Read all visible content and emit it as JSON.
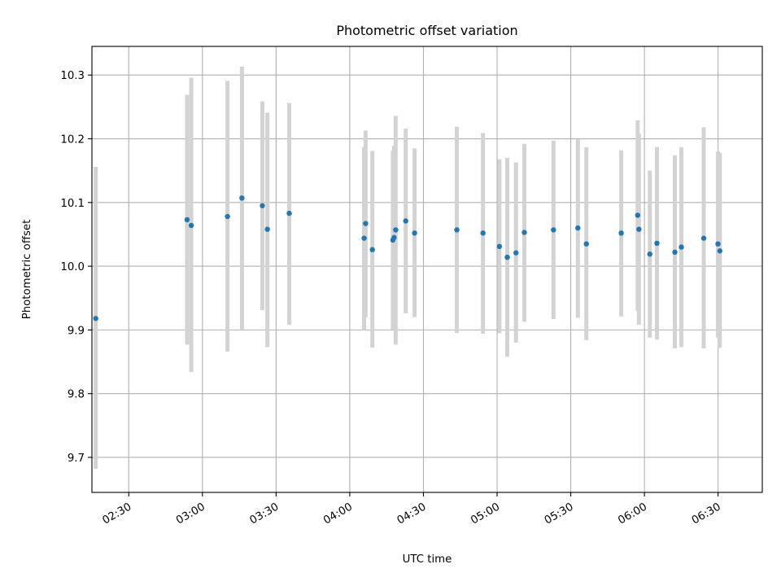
{
  "chart_data": {
    "type": "scatter",
    "title": "Photometric offset variation",
    "xlabel": "UTC time",
    "ylabel": "Photometric offset",
    "x_axis_kind": "time",
    "xlim": [
      "02:15",
      "06:48"
    ],
    "ylim": [
      9.645,
      10.345
    ],
    "x_ticks": [
      "02:30",
      "03:00",
      "03:30",
      "04:00",
      "04:30",
      "05:00",
      "05:30",
      "06:00",
      "06:30"
    ],
    "y_ticks": [
      "9.7",
      "9.8",
      "9.9",
      "10.0",
      "10.1",
      "10.2",
      "10.3"
    ],
    "grid": true,
    "legend": "none",
    "colors": {
      "marker": "#1f77b4",
      "errorbar": "#d3d3d3",
      "grid": "#b0b0b0"
    },
    "series": [
      {
        "points": [
          {
            "x": "02:16:33",
            "y": 9.918,
            "ylow": 9.682,
            "yhigh": 10.156
          },
          {
            "x": "02:53:45",
            "y": 10.073,
            "ylow": 9.877,
            "yhigh": 10.269
          },
          {
            "x": "02:55:27",
            "y": 10.064,
            "ylow": 9.834,
            "yhigh": 10.296
          },
          {
            "x": "03:10:12",
            "y": 10.078,
            "ylow": 9.866,
            "yhigh": 10.291
          },
          {
            "x": "03:16:06",
            "y": 10.107,
            "ylow": 9.901,
            "yhigh": 10.313
          },
          {
            "x": "03:24:24",
            "y": 10.095,
            "ylow": 9.931,
            "yhigh": 10.259
          },
          {
            "x": "03:26:27",
            "y": 10.058,
            "ylow": 9.873,
            "yhigh": 10.241
          },
          {
            "x": "03:35:21",
            "y": 10.083,
            "ylow": 9.908,
            "yhigh": 10.256
          },
          {
            "x": "04:05:51",
            "y": 10.044,
            "ylow": 9.9,
            "yhigh": 10.187
          },
          {
            "x": "04:06:27",
            "y": 10.067,
            "ylow": 9.92,
            "yhigh": 10.213
          },
          {
            "x": "04:09:12",
            "y": 10.026,
            "ylow": 9.872,
            "yhigh": 10.181
          },
          {
            "x": "04:17:33",
            "y": 10.041,
            "ylow": 9.901,
            "yhigh": 10.181
          },
          {
            "x": "04:18:03",
            "y": 10.045,
            "ylow": 9.901,
            "yhigh": 10.189
          },
          {
            "x": "04:18:42",
            "y": 10.057,
            "ylow": 9.877,
            "yhigh": 10.236
          },
          {
            "x": "04:22:48",
            "y": 10.071,
            "ylow": 9.926,
            "yhigh": 10.216
          },
          {
            "x": "04:26:24",
            "y": 10.052,
            "ylow": 9.92,
            "yhigh": 10.185
          },
          {
            "x": "04:43:36",
            "y": 10.057,
            "ylow": 9.895,
            "yhigh": 10.219
          },
          {
            "x": "04:54:15",
            "y": 10.052,
            "ylow": 9.894,
            "yhigh": 10.209
          },
          {
            "x": "05:00:57",
            "y": 10.031,
            "ylow": 9.895,
            "yhigh": 10.168
          },
          {
            "x": "05:04:09",
            "y": 10.014,
            "ylow": 9.858,
            "yhigh": 10.17
          },
          {
            "x": "05:07:42",
            "y": 10.021,
            "ylow": 9.88,
            "yhigh": 10.163
          },
          {
            "x": "05:11:06",
            "y": 10.053,
            "ylow": 9.913,
            "yhigh": 10.192
          },
          {
            "x": "05:22:57",
            "y": 10.057,
            "ylow": 9.917,
            "yhigh": 10.197
          },
          {
            "x": "05:32:54",
            "y": 10.06,
            "ylow": 9.919,
            "yhigh": 10.199
          },
          {
            "x": "05:36:21",
            "y": 10.035,
            "ylow": 9.884,
            "yhigh": 10.187
          },
          {
            "x": "05:50:33",
            "y": 10.052,
            "ylow": 9.921,
            "yhigh": 10.182
          },
          {
            "x": "05:57:15",
            "y": 10.08,
            "ylow": 9.93,
            "yhigh": 10.229
          },
          {
            "x": "05:57:45",
            "y": 10.058,
            "ylow": 9.908,
            "yhigh": 10.208
          },
          {
            "x": "06:02:12",
            "y": 10.019,
            "ylow": 9.888,
            "yhigh": 10.15
          },
          {
            "x": "06:05:06",
            "y": 10.036,
            "ylow": 9.885,
            "yhigh": 10.187
          },
          {
            "x": "06:12:24",
            "y": 10.022,
            "ylow": 9.871,
            "yhigh": 10.174
          },
          {
            "x": "06:15:03",
            "y": 10.03,
            "ylow": 9.873,
            "yhigh": 10.187
          },
          {
            "x": "06:24:09",
            "y": 10.044,
            "ylow": 9.871,
            "yhigh": 10.218
          },
          {
            "x": "06:29:57",
            "y": 10.035,
            "ylow": 9.888,
            "yhigh": 10.18
          },
          {
            "x": "06:30:42",
            "y": 10.024,
            "ylow": 9.872,
            "yhigh": 10.178
          }
        ]
      }
    ]
  }
}
